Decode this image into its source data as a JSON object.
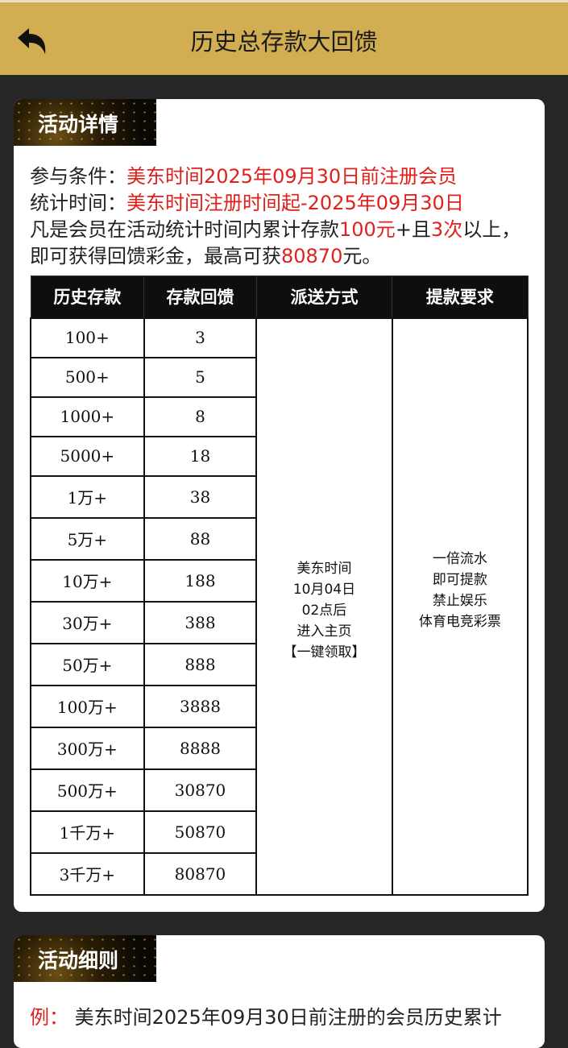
{
  "header": {
    "title": "历史总存款大回馈",
    "back_icon": "back-arrow-icon"
  },
  "details": {
    "badge": "活动详情",
    "condition_label": "参与条件：",
    "condition_value": "美东时间2025年09月30日前注册会员",
    "period_label": "统计时间：",
    "period_value": "美东时间注册时间起-2025年09月30日",
    "desc_1": "凡是会员在活动统计时间内累计存款",
    "desc_amount": "100元",
    "desc_2": "+且",
    "desc_times": "3次",
    "desc_3": "以上，即可获得回馈彩金，最高可获",
    "desc_max": "80870",
    "desc_4": "元。"
  },
  "table": {
    "headers": [
      "历史存款",
      "存款回馈",
      "派送方式",
      "提款要求"
    ],
    "rows": [
      [
        "100+",
        "3"
      ],
      [
        "500+",
        "5"
      ],
      [
        "1000+",
        "8"
      ],
      [
        "5000+",
        "18"
      ],
      [
        "1万+",
        "38"
      ],
      [
        "5万+",
        "88"
      ],
      [
        "10万+",
        "188"
      ],
      [
        "30万+",
        "388"
      ],
      [
        "50万+",
        "888"
      ],
      [
        "100万+",
        "3888"
      ],
      [
        "300万+",
        "8888"
      ],
      [
        "500万+",
        "30870"
      ],
      [
        "1千万+",
        "50870"
      ],
      [
        "3千万+",
        "80870"
      ]
    ],
    "delivery": [
      "美东时间",
      "10月04日",
      "02点后",
      "进入主页",
      "【一键领取】"
    ],
    "withdraw": [
      "一倍流水",
      "即可提款",
      "禁止娱乐",
      "体育电竞彩票"
    ]
  },
  "rules": {
    "badge": "活动细则",
    "example_label": "例：",
    "example_text": "美东时间2025年09月30日前注册的会员历史累计"
  },
  "colors": {
    "header": "#d1ae52",
    "accent": "#e0201c",
    "background": "#262626"
  }
}
